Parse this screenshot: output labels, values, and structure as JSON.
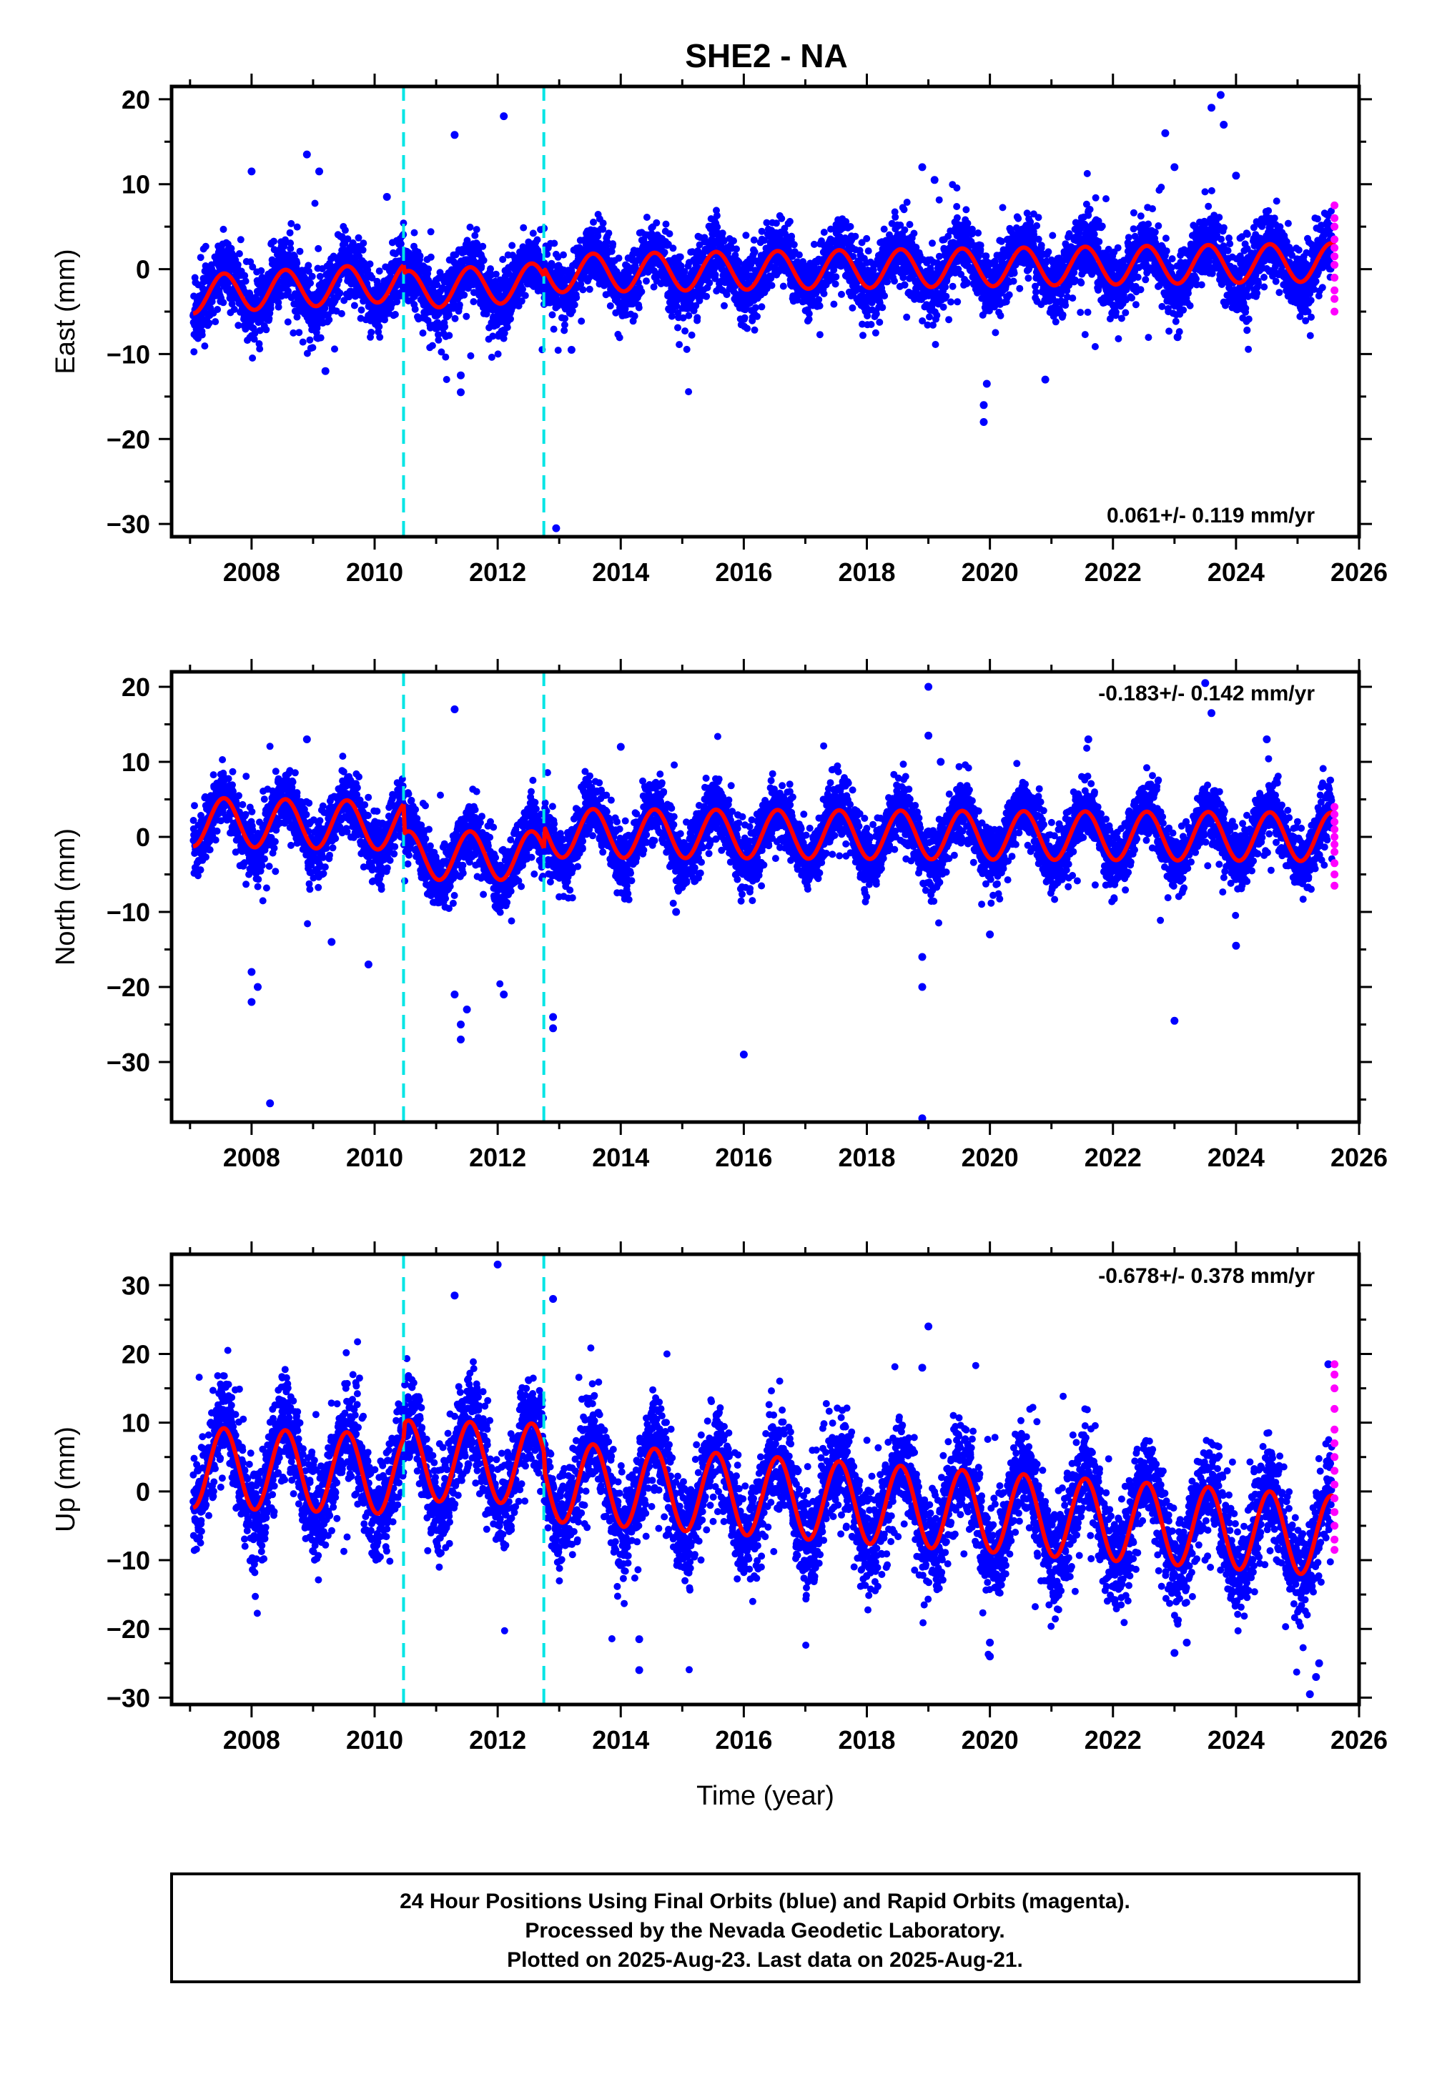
{
  "chart_data": [
    {
      "type": "scatter",
      "panel": "east",
      "title": "SHE2 - NA",
      "ylabel": "East (mm)",
      "xlabel": "",
      "xlim": [
        2006.7,
        2026.0
      ],
      "ylim": [
        -31.5,
        21.5
      ],
      "xticks": [
        2008,
        2010,
        2012,
        2014,
        2016,
        2018,
        2020,
        2022,
        2024,
        2026
      ],
      "yticks": [
        -30,
        -20,
        -10,
        0,
        10,
        20
      ],
      "rate_text": "0.061+/- 0.119 mm/yr",
      "rate_position": "bottom-right",
      "vertical_lines": [
        2010.47,
        2012.75
      ],
      "series": [
        {
          "role": "final-orbits",
          "color": "#0000ff",
          "x_range": [
            2007.05,
            2025.56
          ],
          "seasonal_amplitude": 2.5,
          "trend_segments": [
            [
              2007.0,
              -3.0,
              2010.47,
              -1.5
            ],
            [
              2010.47,
              -2.5,
              2012.75,
              -1.5
            ],
            [
              2012.75,
              -0.5,
              2025.6,
              0.8
            ]
          ],
          "scatter_sd": 1.9
        },
        {
          "role": "rapid-orbits",
          "color": "#ff00ff",
          "x": 2025.6,
          "y": [
            7.5,
            6.0,
            5.0,
            3.5,
            2.5,
            1.5,
            0.5,
            -1.0,
            -2.5,
            -3.5,
            -5.0
          ]
        },
        {
          "role": "model",
          "color": "#ff0000"
        }
      ],
      "outliers": [
        [
          2008.0,
          11.5
        ],
        [
          2008.9,
          13.5
        ],
        [
          2009.1,
          11.5
        ],
        [
          2009.2,
          -12.0
        ],
        [
          2010.2,
          8.5
        ],
        [
          2011.3,
          15.8
        ],
        [
          2011.4,
          -14.5
        ],
        [
          2011.4,
          -12.5
        ],
        [
          2012.1,
          18.0
        ],
        [
          2012.95,
          -30.5
        ],
        [
          2013.2,
          -9.5
        ],
        [
          2018.9,
          12.0
        ],
        [
          2019.1,
          10.5
        ],
        [
          2019.9,
          -16.0
        ],
        [
          2019.9,
          -18.0
        ],
        [
          2019.95,
          -13.5
        ],
        [
          2020.9,
          -13.0
        ],
        [
          2022.85,
          16.0
        ],
        [
          2023.0,
          12.0
        ],
        [
          2023.05,
          -8.0
        ],
        [
          2023.6,
          19.0
        ],
        [
          2023.75,
          20.5
        ],
        [
          2023.8,
          17.0
        ],
        [
          2024.0,
          11.0
        ]
      ]
    },
    {
      "type": "scatter",
      "panel": "north",
      "ylabel": "North (mm)",
      "xlabel": "",
      "xlim": [
        2006.7,
        2026.0
      ],
      "ylim": [
        -38.0,
        22.0
      ],
      "xticks": [
        2008,
        2010,
        2012,
        2014,
        2016,
        2018,
        2020,
        2022,
        2024,
        2026
      ],
      "yticks": [
        -30,
        -20,
        -10,
        0,
        10,
        20
      ],
      "rate_text": "-0.183+/- 0.142 mm/yr",
      "rate_position": "top-right",
      "vertical_lines": [
        2010.47,
        2012.75
      ],
      "series": [
        {
          "role": "final-orbits",
          "color": "#0000ff",
          "x_range": [
            2007.05,
            2025.56
          ],
          "seasonal_amplitude": 3.6,
          "trend_segments": [
            [
              2007.0,
              2.0,
              2010.47,
              1.5
            ],
            [
              2010.47,
              -2.5,
              2012.75,
              -2.5
            ],
            [
              2012.75,
              0.5,
              2025.6,
              0.0
            ]
          ],
          "scatter_sd": 2.0
        },
        {
          "role": "rapid-orbits",
          "color": "#ff00ff",
          "x": 2025.6,
          "y": [
            4.0,
            3.0,
            2.0,
            1.0,
            0.0,
            -1.0,
            -2.0,
            -3.5,
            -5.0,
            -6.5
          ]
        },
        {
          "role": "model",
          "color": "#ff0000"
        }
      ],
      "outliers": [
        [
          2008.0,
          -18.0
        ],
        [
          2008.0,
          -22.0
        ],
        [
          2008.1,
          -20.0
        ],
        [
          2008.3,
          -35.5
        ],
        [
          2008.9,
          13.0
        ],
        [
          2009.3,
          -14.0
        ],
        [
          2009.9,
          -17.0
        ],
        [
          2011.3,
          17.0
        ],
        [
          2011.3,
          -21.0
        ],
        [
          2011.4,
          -25.0
        ],
        [
          2011.4,
          -27.0
        ],
        [
          2011.5,
          -23.0
        ],
        [
          2012.1,
          -21.0
        ],
        [
          2012.9,
          -24.0
        ],
        [
          2012.9,
          -25.5
        ],
        [
          2014.0,
          12.0
        ],
        [
          2014.9,
          -10.0
        ],
        [
          2016.0,
          -29.0
        ],
        [
          2018.9,
          -16.0
        ],
        [
          2018.9,
          -20.0
        ],
        [
          2018.9,
          -37.5
        ],
        [
          2019.0,
          20.0
        ],
        [
          2019.0,
          13.5
        ],
        [
          2019.2,
          10.0
        ],
        [
          2020.0,
          -13.0
        ],
        [
          2021.6,
          13.0
        ],
        [
          2023.0,
          -24.5
        ],
        [
          2023.5,
          20.5
        ],
        [
          2023.6,
          16.5
        ],
        [
          2024.0,
          -14.5
        ],
        [
          2024.5,
          13.0
        ]
      ]
    },
    {
      "type": "scatter",
      "panel": "up",
      "ylabel": "Up (mm)",
      "xlabel": "Time (year)",
      "xlim": [
        2006.7,
        2026.0
      ],
      "ylim": [
        -31.0,
        34.5
      ],
      "xticks": [
        2008,
        2010,
        2012,
        2014,
        2016,
        2018,
        2020,
        2022,
        2024,
        2026
      ],
      "yticks": [
        -30,
        -20,
        -10,
        0,
        10,
        20,
        30
      ],
      "rate_text": "-0.678+/- 0.378 mm/yr",
      "rate_position": "top-right",
      "vertical_lines": [
        2010.47,
        2012.75
      ],
      "series": [
        {
          "role": "final-orbits",
          "color": "#0000ff",
          "x_range": [
            2007.05,
            2025.56
          ],
          "seasonal_amplitude": 6.5,
          "trend_segments": [
            [
              2007.0,
              3.5,
              2010.47,
              2.5
            ],
            [
              2010.47,
              4.5,
              2012.75,
              4.0
            ],
            [
              2012.75,
              1.5,
              2025.6,
              -6.5
            ]
          ],
          "scatter_sd": 3.6
        },
        {
          "role": "rapid-orbits",
          "color": "#ff00ff",
          "x": 2025.6,
          "y": [
            18.5,
            17.0,
            15.0,
            12.0,
            9.0,
            7.0,
            5.0,
            3.0,
            1.0,
            -1.0,
            -3.0,
            -5.0,
            -7.0,
            -8.5
          ]
        },
        {
          "role": "model",
          "color": "#ff0000"
        }
      ],
      "outliers": [
        [
          2011.3,
          28.5
        ],
        [
          2012.0,
          33.0
        ],
        [
          2012.9,
          28.0
        ],
        [
          2014.3,
          -21.5
        ],
        [
          2014.3,
          -26.0
        ],
        [
          2018.9,
          18.0
        ],
        [
          2019.0,
          24.0
        ],
        [
          2020.0,
          -22.0
        ],
        [
          2020.0,
          -24.0
        ],
        [
          2023.0,
          -23.5
        ],
        [
          2023.2,
          -22.0
        ],
        [
          2025.2,
          -29.5
        ],
        [
          2025.3,
          -27.0
        ],
        [
          2025.35,
          -25.0
        ],
        [
          2025.5,
          18.5
        ]
      ]
    }
  ],
  "caption": {
    "line1": "24 Hour Positions Using Final Orbits (blue) and Rapid Orbits (magenta).",
    "line2": "Processed by the Nevada Geodetic Laboratory.",
    "line3": "Plotted on 2025-Aug-23. Last data on 2025-Aug-21."
  }
}
